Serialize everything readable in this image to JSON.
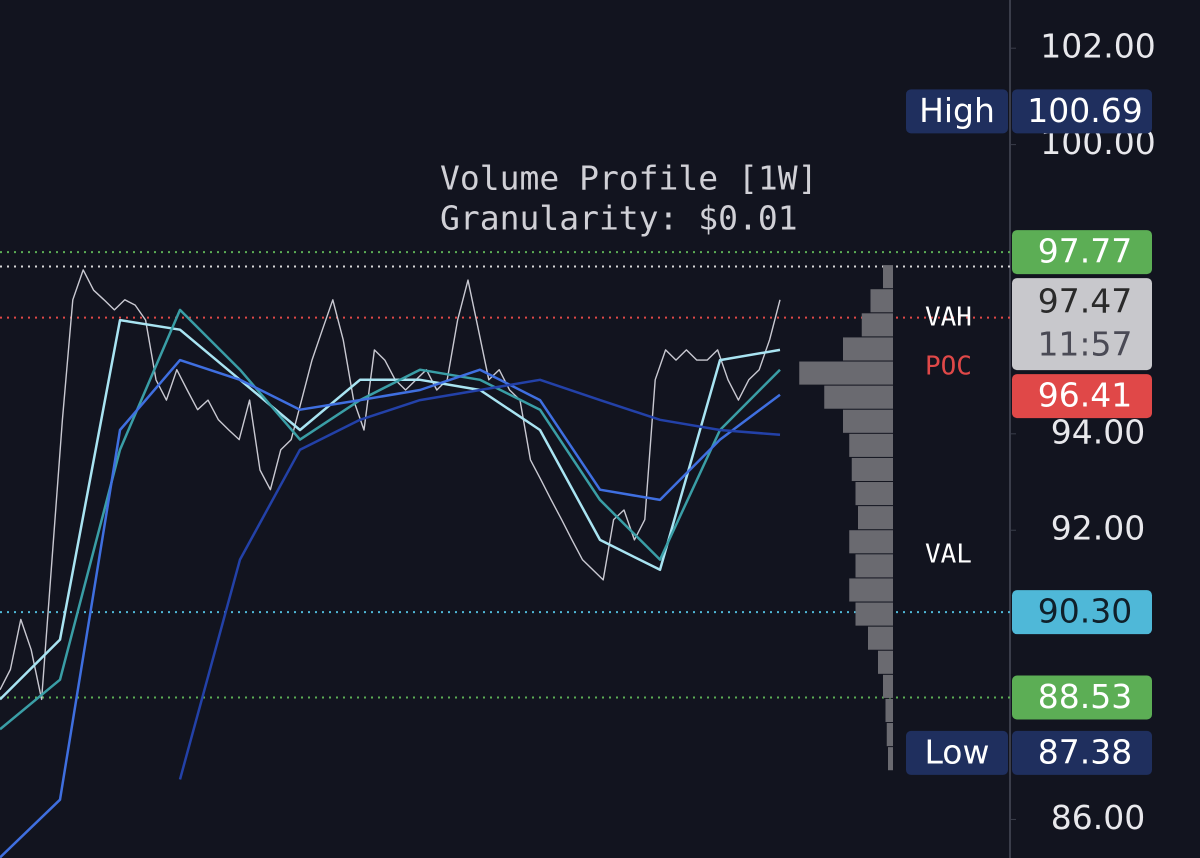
{
  "chart_data": {
    "type": "line",
    "ylim": [
      85.2,
      103.0
    ],
    "yticks": [
      {
        "value": 102,
        "label": "102.00"
      },
      {
        "value": 100,
        "label": "100.00"
      },
      {
        "value": 94,
        "label": "94.00"
      },
      {
        "value": 92,
        "label": "92.00"
      },
      {
        "value": 86,
        "label": "86.00"
      }
    ],
    "annotations": [
      "Volume Profile [1W]",
      "Granularity: $0.01"
    ],
    "profile_labels": [
      "VAH",
      "POC",
      "VAL"
    ],
    "series": [
      {
        "color": "#c9c9d2",
        "width": 1.4,
        "values": [
          88.69,
          89.11,
          90.15,
          89.52,
          88.49,
          91.39,
          94.29,
          96.78,
          97.4,
          96.98,
          96.78,
          96.57,
          96.78,
          96.67,
          96.36,
          95.12,
          94.7,
          95.33,
          94.91,
          94.5,
          94.7,
          94.29,
          94.08,
          93.88,
          94.7,
          93.25,
          92.84,
          93.67,
          93.88,
          94.7,
          95.53,
          96.16,
          96.78,
          95.95,
          94.7,
          94.08,
          95.74,
          95.53,
          95.12,
          94.91,
          95.12,
          95.33,
          94.91,
          95.12,
          96.36,
          97.19,
          96.16,
          95.12,
          95.33,
          94.91,
          94.7,
          93.46,
          93.05,
          92.63,
          92.22,
          91.8,
          91.39,
          91.18,
          90.97,
          92.22,
          92.42,
          91.8,
          92.22,
          95.12,
          95.74,
          95.53,
          95.74,
          95.53,
          95.53,
          95.74,
          95.12,
          94.7,
          95.12,
          95.33,
          95.95,
          96.78
        ]
      },
      {
        "color": "#a9e4f2",
        "width": 2.5,
        "values": [
          88.49,
          89.73,
          96.36,
          96.16,
          95.12,
          94.08,
          95.12,
          95.12,
          94.91,
          94.08,
          91.8,
          91.18,
          95.53,
          95.74
        ]
      },
      {
        "color": "#3a9ea6",
        "width": 2.5,
        "values": [
          87.87,
          88.9,
          93.67,
          96.57,
          95.33,
          93.88,
          94.7,
          95.33,
          95.12,
          94.5,
          92.63,
          91.39,
          94.08,
          95.33
        ]
      },
      {
        "color": "#3f6fe0",
        "width": 2.5,
        "values": [
          85.21,
          86.41,
          94.08,
          95.53,
          95.12,
          94.5,
          94.7,
          94.91,
          95.33,
          94.7,
          92.84,
          92.63,
          93.88,
          94.81
        ]
      },
      {
        "color": "#2341a8",
        "width": 2.5,
        "values": [
          null,
          null,
          null,
          86.83,
          91.39,
          93.67,
          94.29,
          94.7,
          94.91,
          95.12,
          94.7,
          94.29,
          94.08,
          93.98
        ]
      }
    ],
    "profile": {
      "color": "#6a6a70",
      "xlim": [
        0,
        80
      ],
      "prices": [
        97.25,
        96.75,
        96.25,
        95.75,
        95.25,
        94.75,
        94.25,
        93.75,
        93.25,
        92.75,
        92.25,
        91.75,
        91.25,
        90.75,
        90.25,
        89.75,
        89.25,
        88.75,
        88.25,
        87.75,
        87.25
      ],
      "volumes": [
        8,
        18,
        25,
        40,
        75,
        55,
        40,
        35,
        33,
        30,
        28,
        35,
        30,
        35,
        30,
        20,
        12,
        8,
        6,
        5,
        4
      ]
    },
    "price_labels": [
      {
        "name": "High",
        "value": 100.69,
        "color": "#1f2f5e",
        "text_color": "#ffffff"
      },
      {
        "value": 97.77,
        "color": "#5cae55",
        "text_color": "#ffffff",
        "line_color": "#5cae55"
      },
      {
        "value": 97.47,
        "sub": "11:57",
        "color": "#c8c8cc",
        "text_color": "#2a2a2a",
        "line_color": "#d8d8d8"
      },
      {
        "value": 96.41,
        "color": "#e04848",
        "text_color": "#ffffff",
        "line_color": "#e04848"
      },
      {
        "value": 90.3,
        "label": "90.30",
        "color": "#4fb8d8",
        "text_color": "#10202a",
        "line_color": "#4fb8d8"
      },
      {
        "value": 88.53,
        "color": "#5cae55",
        "text_color": "#ffffff",
        "line_color": "#5cae55"
      },
      {
        "name": "Low",
        "value": 87.38,
        "color": "#1f2f5e",
        "text_color": "#ffffff"
      }
    ]
  }
}
